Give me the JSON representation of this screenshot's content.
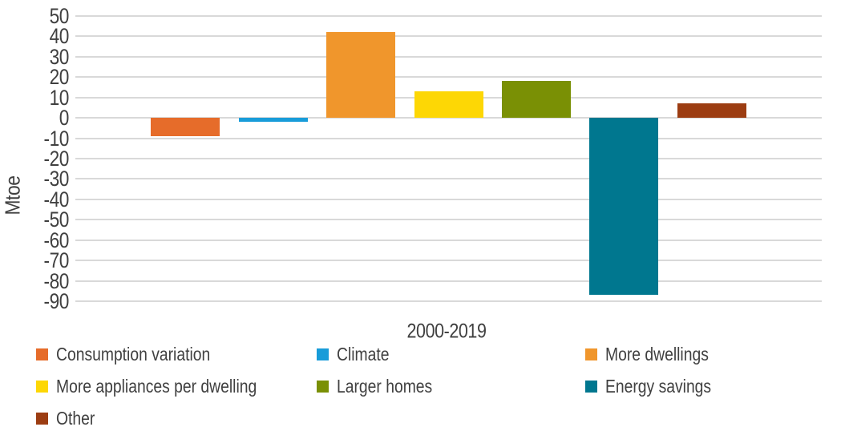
{
  "chart_data": {
    "type": "bar",
    "title": "",
    "xlabel": "2000-2019",
    "ylabel": "Mtoe",
    "unit": "Mtoe",
    "ylim": [
      -90,
      50
    ],
    "ytick_step": 10,
    "yticks": [
      50,
      40,
      30,
      20,
      10,
      0,
      -10,
      -20,
      -30,
      -40,
      -50,
      -60,
      -70,
      -80,
      -90
    ],
    "grid": true,
    "gridline_color": "#d9d9d9",
    "text_color": "#404040",
    "legend_position": "bottom",
    "legend_columns": 3,
    "categories": [
      "2000-2019"
    ],
    "series": [
      {
        "name": "Consumption variation",
        "value": -9,
        "color": "#e66c2a"
      },
      {
        "name": "Climate",
        "value": -2,
        "color": "#189cd9"
      },
      {
        "name": "More dwellings",
        "value": 42,
        "color": "#f0962c"
      },
      {
        "name": "More appliances per dwelling",
        "value": 13,
        "color": "#fdd705"
      },
      {
        "name": "Larger homes",
        "value": 18,
        "color": "#7a9005"
      },
      {
        "name": "Energy savings",
        "value": -87,
        "color": "#00778f"
      },
      {
        "name": "Other",
        "value": 7,
        "color": "#9c3d12"
      }
    ]
  }
}
